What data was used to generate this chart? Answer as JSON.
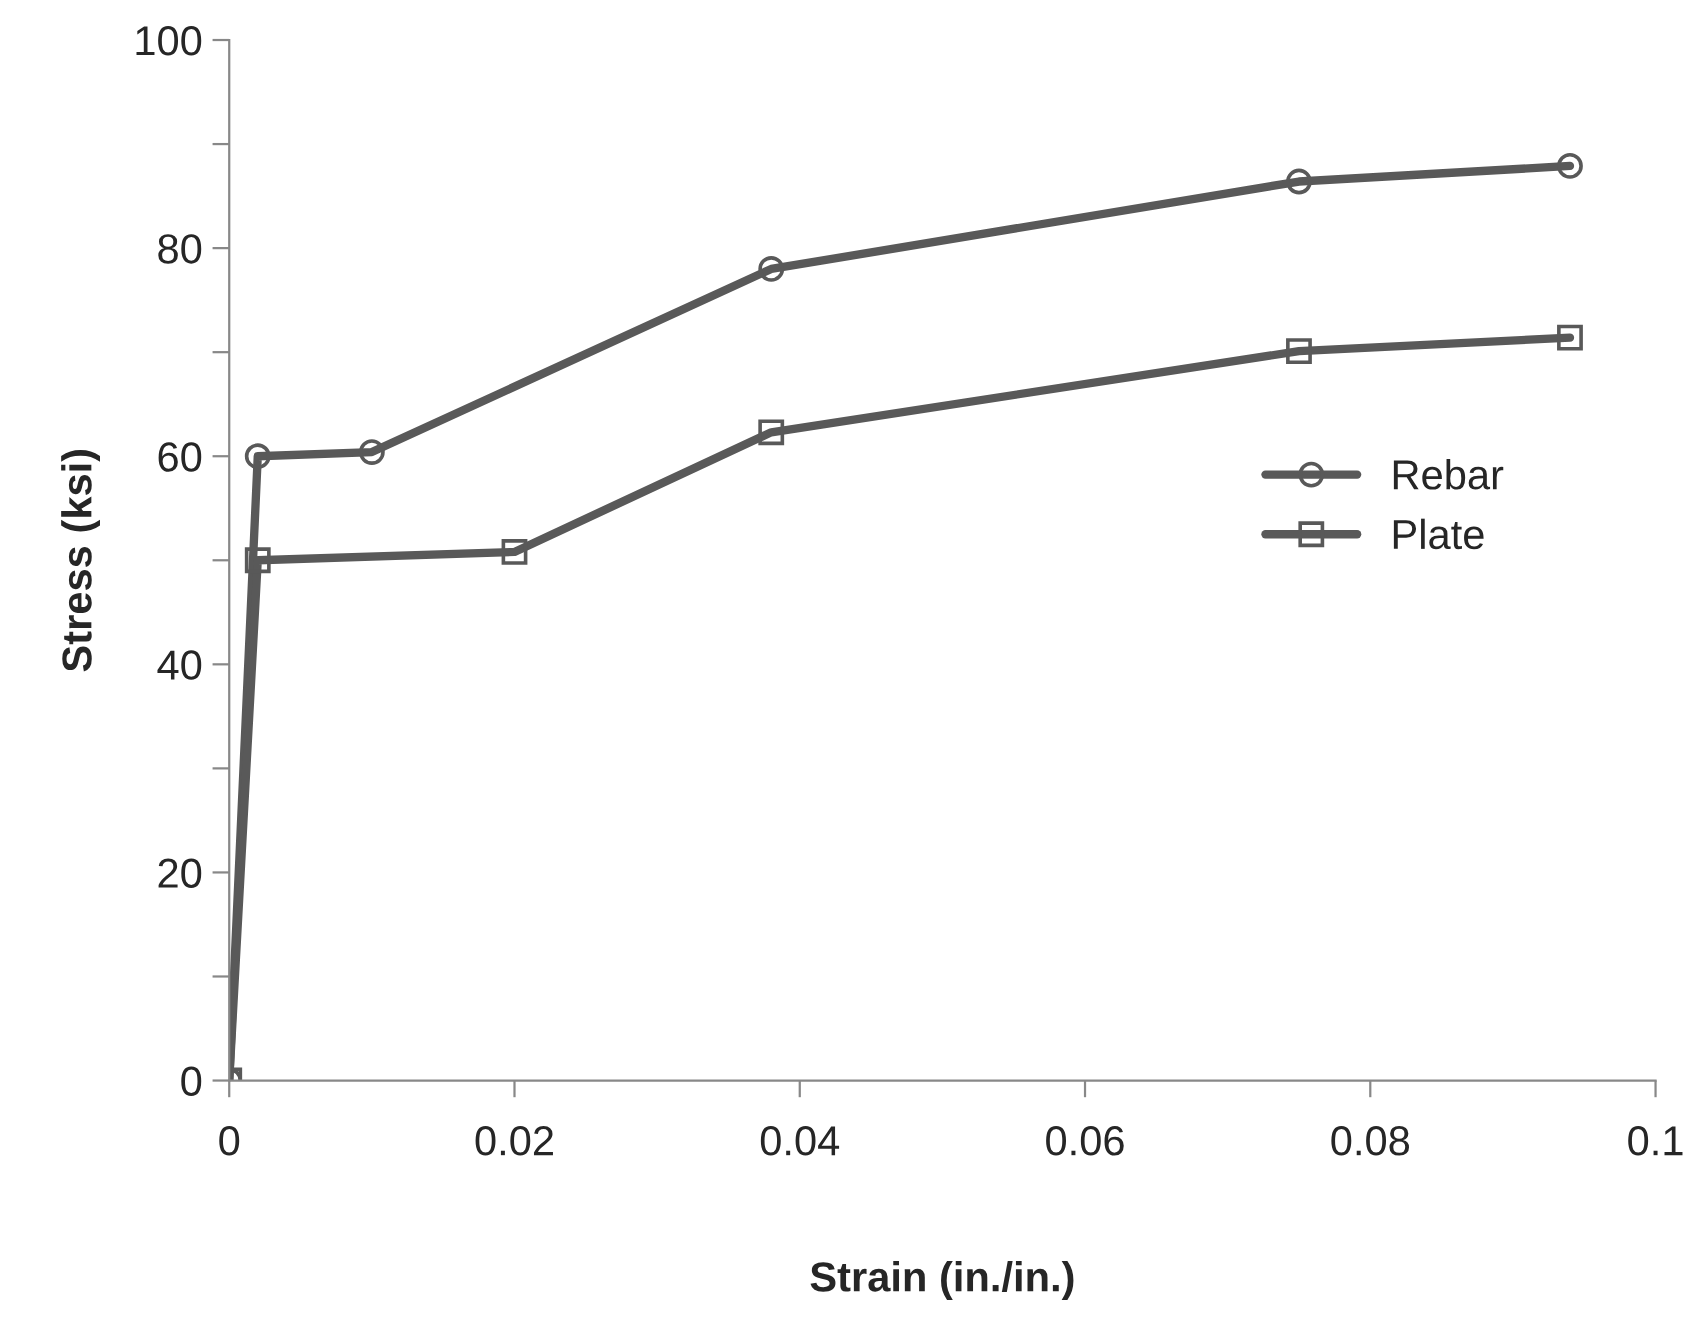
{
  "chart_data": {
    "type": "line",
    "xlabel": "Strain (in./in.)",
    "ylabel": "Stress (ksi)",
    "xlim": [
      0,
      0.1
    ],
    "xticks": [
      0,
      0.02,
      0.04,
      0.06,
      0.08,
      0.1
    ],
    "ylim": [
      0,
      100
    ],
    "yticks": [
      0,
      {
        "value": 10,
        "label": null
      },
      20,
      {
        "value": 30,
        "label": null
      },
      40,
      {
        "value": 50,
        "label": null
      },
      60,
      {
        "value": 70,
        "label": null
      },
      80,
      {
        "value": 90,
        "label": null
      },
      100
    ],
    "grid": false,
    "legend": "right",
    "line_style": "solid",
    "series": [
      {
        "name": "Rebar",
        "color": "#595959",
        "marker": "circle",
        "x": [
          0,
          0.002,
          0.01,
          0.038,
          0.075,
          0.094
        ],
        "values": [
          0,
          60,
          60.4,
          78,
          86.4,
          87.9
        ]
      },
      {
        "name": "Plate",
        "color": "#595959",
        "marker": "square",
        "x": [
          0,
          0.002,
          0.02,
          0.038,
          0.075,
          0.094
        ],
        "values": [
          0,
          50,
          50.8,
          62.3,
          70.1,
          71.4
        ]
      }
    ]
  }
}
